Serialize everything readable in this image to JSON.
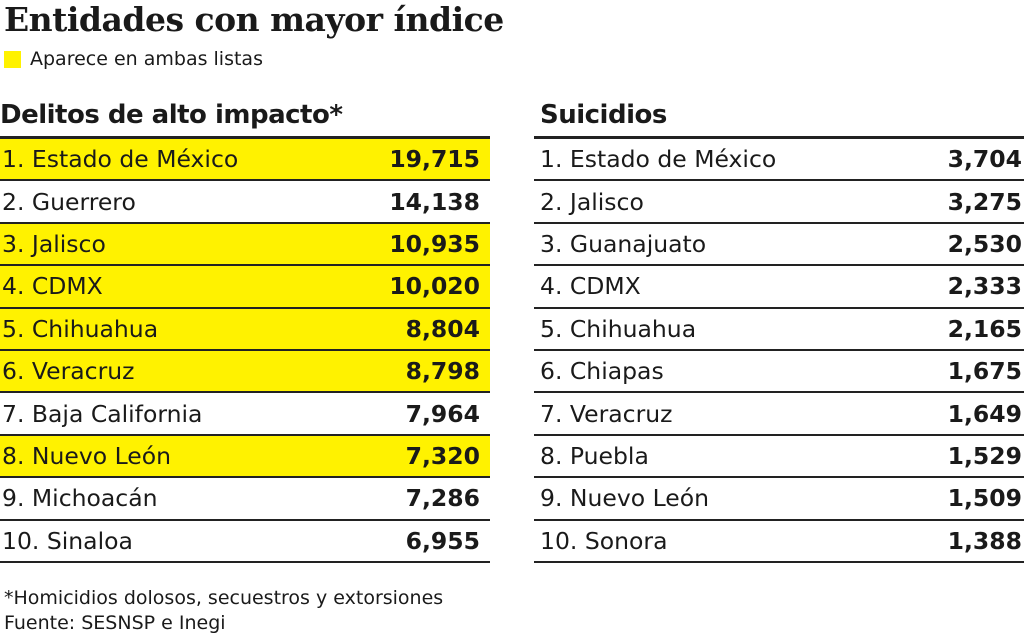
{
  "title": "Entidades con mayor índice",
  "legend": {
    "label": "Aparece en ambas listas",
    "color": "#fff200"
  },
  "chart_data": [
    {
      "type": "table",
      "title": "Delitos de alto impacto*",
      "rows": [
        {
          "label": "1. Estado de México",
          "value": "19,715",
          "highlight": true
        },
        {
          "label": "2. Guerrero",
          "value": "14,138",
          "highlight": false
        },
        {
          "label": "3. Jalisco",
          "value": "10,935",
          "highlight": true
        },
        {
          "label": "4. CDMX",
          "value": "10,020",
          "highlight": true
        },
        {
          "label": "5. Chihuahua",
          "value": "8,804",
          "highlight": true
        },
        {
          "label": "6. Veracruz",
          "value": "8,798",
          "highlight": true
        },
        {
          "label": "7. Baja California",
          "value": "7,964",
          "highlight": false
        },
        {
          "label": "8. Nuevo León",
          "value": "7,320",
          "highlight": true
        },
        {
          "label": "9. Michoacán",
          "value": "7,286",
          "highlight": false
        },
        {
          "label": "10. Sinaloa",
          "value": "6,955",
          "highlight": false
        }
      ]
    },
    {
      "type": "table",
      "title": "Suicidios",
      "rows": [
        {
          "label": "1. Estado de México",
          "value": "3,704",
          "highlight": false
        },
        {
          "label": "2. Jalisco",
          "value": "3,275",
          "highlight": false
        },
        {
          "label": "3. Guanajuato",
          "value": "2,530",
          "highlight": false
        },
        {
          "label": "4. CDMX",
          "value": "2,333",
          "highlight": false
        },
        {
          "label": "5. Chihuahua",
          "value": "2,165",
          "highlight": false
        },
        {
          "label": "6. Chiapas",
          "value": "1,675",
          "highlight": false
        },
        {
          "label": "7. Veracruz",
          "value": "1,649",
          "highlight": false
        },
        {
          "label": "8. Puebla",
          "value": "1,529",
          "highlight": false
        },
        {
          "label": "9. Nuevo León",
          "value": "1,509",
          "highlight": false
        },
        {
          "label": "10. Sonora",
          "value": "1,388",
          "highlight": false
        }
      ]
    }
  ],
  "footnote": "*Homicidios dolosos, secuestros y extorsiones",
  "source": "Fuente: SESNSP e Inegi"
}
